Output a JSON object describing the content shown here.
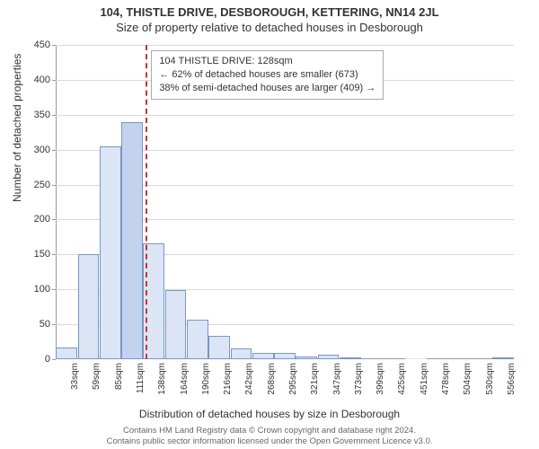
{
  "title_line1": "104, THISTLE DRIVE, DESBOROUGH, KETTERING, NN14 2JL",
  "title_line2": "Size of property relative to detached houses in Desborough",
  "ylabel": "Number of detached properties",
  "xlabel": "Distribution of detached houses by size in Desborough",
  "annotation": {
    "line1": "104 THISTLE DRIVE: 128sqm",
    "line2": "← 62% of detached houses are smaller (673)",
    "line3": "38% of semi-detached houses are larger (409) →"
  },
  "footer": {
    "line1": "Contains HM Land Registry data © Crown copyright and database right 2024.",
    "line2": "Contains public sector information licensed under the Open Government Licence v3.0."
  },
  "chart": {
    "type": "histogram",
    "xlim": [
      20,
      569
    ],
    "ylim": [
      0,
      450
    ],
    "ytick_step": 50,
    "x_categories": [
      "33sqm",
      "59sqm",
      "85sqm",
      "111sqm",
      "138sqm",
      "164sqm",
      "190sqm",
      "216sqm",
      "242sqm",
      "268sqm",
      "295sqm",
      "321sqm",
      "347sqm",
      "373sqm",
      "399sqm",
      "425sqm",
      "451sqm",
      "478sqm",
      "504sqm",
      "530sqm",
      "556sqm"
    ],
    "values": [
      17,
      151,
      305,
      340,
      166,
      99,
      56,
      33,
      15,
      9,
      9,
      4,
      6,
      3,
      0,
      0,
      1,
      0,
      0,
      0,
      2
    ],
    "bar_fill": "#dbe5f5",
    "bar_border": "#7a95c8",
    "highlight_index": 3,
    "highlight_fill": "#c3d3ee",
    "grid_color": "#d9d9d9",
    "axis_color": "#999999",
    "marker_x": 128,
    "marker_color": "#cc3333",
    "background": "#ffffff",
    "label_fontsize": 12,
    "tick_fontsize": 11
  }
}
